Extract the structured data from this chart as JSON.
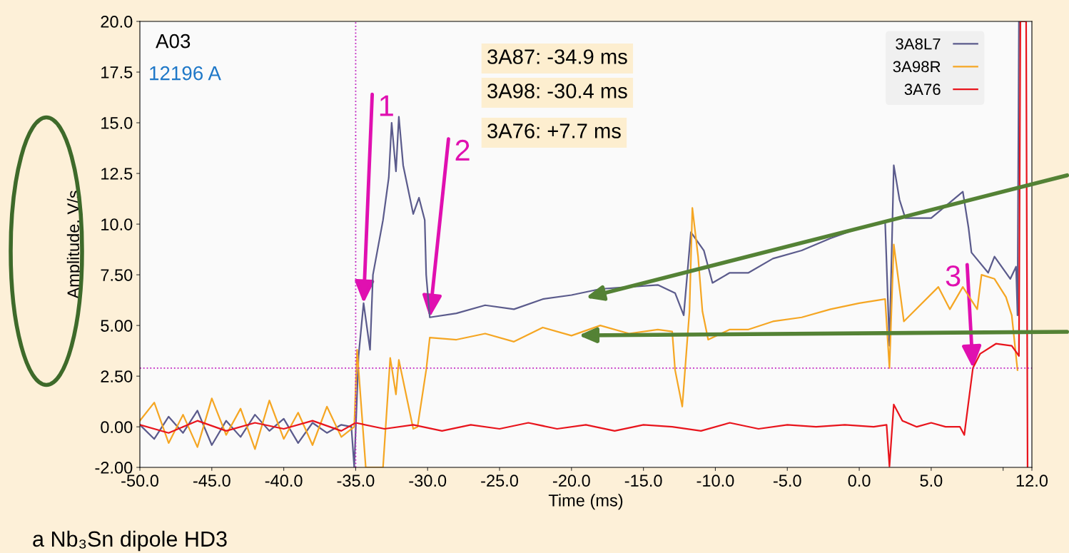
{
  "chart_data": {
    "type": "line",
    "xlabel": "Time (ms)",
    "ylabel": "Amplitude, V/s",
    "xlim": [
      -50,
      12
    ],
    "xticks": [
      {
        "value": -50,
        "label": "-50.0"
      },
      {
        "value": -45,
        "label": "-45.0"
      },
      {
        "value": -40,
        "label": "-40.0"
      },
      {
        "value": -35,
        "label": "-35.0"
      },
      {
        "value": -30,
        "label": "-30.0"
      },
      {
        "value": -25,
        "label": "-25.0"
      },
      {
        "value": -20,
        "label": "-20.0"
      },
      {
        "value": -15,
        "label": "-15.0"
      },
      {
        "value": -10,
        "label": "-10.0"
      },
      {
        "value": -5,
        "label": "-5.0"
      },
      {
        "value": 0,
        "label": "0.0"
      },
      {
        "value": 5,
        "label": "5.0"
      },
      {
        "value": 10,
        "label": null
      },
      {
        "value": 12,
        "label": "12.0"
      }
    ],
    "ylim": [
      -2,
      20
    ],
    "yticks": [
      {
        "value": -2,
        "label": "-2.00"
      },
      {
        "value": 0,
        "label": "0.00"
      },
      {
        "value": 2.5,
        "label": "2.50"
      },
      {
        "value": 5,
        "label": "5.00"
      },
      {
        "value": 7.5,
        "label": "7.50"
      },
      {
        "value": 10,
        "label": "10.0"
      },
      {
        "value": 12.5,
        "label": "12.5"
      },
      {
        "value": 15,
        "label": "15.0"
      },
      {
        "value": 17.5,
        "label": "17.5"
      },
      {
        "value": 20,
        "label": "20.0"
      }
    ],
    "grid": false,
    "legend": "top right",
    "line_style": "solid",
    "marker": "none",
    "series": [
      {
        "name": "3A8L7",
        "color": "#5b5b8c",
        "x": [
          -50,
          -49,
          -48,
          -47,
          -46,
          -45,
          -44,
          -43,
          -42,
          -41,
          -40,
          -39,
          -38,
          -37,
          -36,
          -35.3,
          -35.1,
          -34.8,
          -34.45,
          -34.0,
          -33.8,
          -33.1,
          -32.7,
          -32.5,
          -32.2,
          -32.0,
          -31.7,
          -31.0,
          -30.6,
          -30.2,
          -30.1,
          -29.85,
          -28,
          -26,
          -24,
          -22,
          -20,
          -18,
          -16,
          -14,
          -12.8,
          -12.2,
          -11.7,
          -10.8,
          -10.2,
          -9,
          -7.7,
          -6,
          -4,
          -2,
          0,
          1.8,
          2.1,
          2.4,
          2.8,
          3.2,
          5.0,
          7.2,
          7.6,
          7.8,
          8.96,
          9.4,
          10.5,
          10.9,
          11.0,
          11.1
        ],
        "values": [
          0.1,
          -0.6,
          0.5,
          -0.3,
          0.8,
          -0.9,
          0.3,
          -0.5,
          0.6,
          -0.2,
          0.4,
          -0.8,
          0.2,
          -0.3,
          0.1,
          0,
          -2,
          3.5,
          6.1,
          3.8,
          7.5,
          10.2,
          12.3,
          15.0,
          12.6,
          15.3,
          12.9,
          10.5,
          11.3,
          10.2,
          7.5,
          5.4,
          5.6,
          6.0,
          5.8,
          6.3,
          6.5,
          6.8,
          6.9,
          7.0,
          6.6,
          5.5,
          9.6,
          8.7,
          7.1,
          7.6,
          7.6,
          8.3,
          8.7,
          9.3,
          9.8,
          10.1,
          4.0,
          12.9,
          11.2,
          10.3,
          10.3,
          11.6,
          9.8,
          8.6,
          7.6,
          8.4,
          7.3,
          7.9,
          5.5,
          20
        ]
      },
      {
        "name": "3A98R",
        "color": "#f5a623",
        "x": [
          -50,
          -49,
          -48,
          -47,
          -46,
          -45,
          -44,
          -43,
          -42,
          -41,
          -40,
          -39,
          -38,
          -37,
          -36,
          -35.1,
          -34.9,
          -34.3,
          -33.1,
          -32.6,
          -32.2,
          -32.0,
          -31.0,
          -30.7,
          -30.1,
          -29.85,
          -28,
          -26,
          -24,
          -22,
          -20,
          -18,
          -16,
          -14,
          -13.0,
          -12.8,
          -12.3,
          -11.8,
          -11.6,
          -11.2,
          -10.9,
          -10.5,
          -9,
          -7.7,
          -6,
          -4,
          -2,
          0,
          1.8,
          2.1,
          2.4,
          3.1,
          5.5,
          6.3,
          7.2,
          8.2,
          8.5,
          9.4,
          10.2,
          10.6,
          11.0
        ],
        "values": [
          0.3,
          1.2,
          -0.8,
          0.6,
          -1.0,
          1.4,
          -0.4,
          0.9,
          -1.1,
          1.3,
          -0.6,
          0.7,
          -0.9,
          1.0,
          -0.5,
          0,
          3.8,
          -2,
          -2,
          3.4,
          1.6,
          3.3,
          -0.1,
          0,
          2.8,
          4.4,
          4.3,
          4.6,
          4.2,
          4.9,
          4.5,
          5.0,
          4.6,
          4.8,
          4.7,
          2.8,
          1.0,
          5.7,
          10.8,
          8.4,
          5.7,
          4.3,
          4.8,
          4.8,
          5.2,
          5.4,
          5.8,
          6.1,
          6.3,
          2.9,
          9.0,
          5.2,
          6.9,
          5.8,
          6.9,
          5.8,
          7.5,
          7.3,
          6.4,
          5.5,
          2.8
        ]
      },
      {
        "name": "3A76",
        "color": "#e8141c",
        "x": [
          -50,
          -48,
          -46,
          -44,
          -42,
          -40,
          -38,
          -36,
          -35,
          -33,
          -31,
          -29,
          -27,
          -25,
          -23,
          -21,
          -19,
          -17,
          -15,
          -13,
          -11,
          -9,
          -7,
          -5,
          -3,
          -1,
          1,
          1.9,
          2.1,
          2.4,
          3,
          4,
          5,
          6,
          7,
          7.3,
          7.9,
          8.4,
          9.5,
          10.6,
          11.1,
          11.2,
          11.6,
          11.7
        ],
        "values": [
          0.1,
          -0.3,
          0.3,
          -0.2,
          0.2,
          -0.1,
          0.3,
          -0.2,
          0.2,
          -0.1,
          0.1,
          -0.2,
          0.1,
          -0.1,
          0.2,
          -0.1,
          0.1,
          -0.2,
          0.1,
          0,
          -0.2,
          0.2,
          -0.1,
          0.1,
          0,
          0.1,
          0,
          0.1,
          -1.95,
          1.1,
          0.3,
          0,
          0.2,
          0,
          0,
          -0.4,
          2.9,
          3.6,
          4.1,
          4.0,
          3.5,
          20,
          20,
          -2
        ]
      }
    ],
    "ref_lines": [
      {
        "axis": "x",
        "value": -35,
        "color": "#c020c0",
        "line_style": "dotted"
      },
      {
        "axis": "y",
        "value": 2.9,
        "color": "#c020c0",
        "line_style": "dotted"
      }
    ],
    "annotations": [
      "A03",
      "12196 A",
      "3A87: -34.9 ms",
      "3A98: -30.4 ms",
      "3A76: +7.7 ms",
      {
        "text": "1",
        "x": -34.45,
        "y": 6.1
      },
      {
        "text": "2",
        "x": -29.85,
        "y": 5.4
      },
      {
        "text": "3",
        "x": 7.9,
        "y": 2.9
      },
      "a Nb₃Sn dipole HD3"
    ]
  }
}
